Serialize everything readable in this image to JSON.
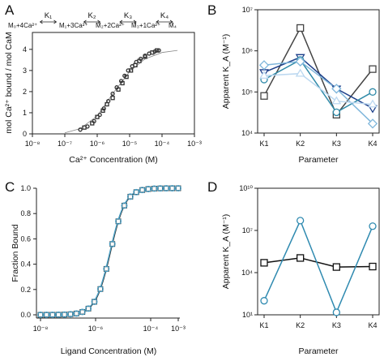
{
  "chart_data": [
    {
      "panel": "A",
      "type": "scatter",
      "xlabel": "Ca²⁺ Concentration (M)",
      "ylabel": "mol Ca²⁺ bound / mol CaM",
      "xscale": "log",
      "xlim": [
        1e-08,
        0.001
      ],
      "ylim": [
        0,
        4.8
      ],
      "xticks": [
        "10⁻⁸",
        "10⁻⁷",
        "10⁻⁶",
        "10⁻⁵",
        "10⁻⁴",
        "10⁻³"
      ],
      "yticks": [
        "0",
        "1",
        "2",
        "3",
        "4"
      ],
      "scheme": {
        "states": [
          "M₀+4Ca²⁺",
          "M₁+3Ca²⁺",
          "M₂+2Ca²⁺",
          "M₃+1Ca²⁺",
          "M₄"
        ],
        "constants": [
          "K₁",
          "K₂",
          "K₃",
          "K₄"
        ]
      },
      "series": [
        {
          "marker": "circle",
          "x": [
            3e-07,
            5e-07,
            8e-07,
            1.2e-06,
            1.6e-06,
            2.2e-06,
            3e-06,
            4e-06,
            5.5e-06,
            7e-06,
            9e-06,
            1.2e-05,
            1.6e-05,
            2.2e-05,
            3e-05,
            4e-05,
            6e-05,
            8e-05
          ],
          "y": [
            0.2,
            0.35,
            0.6,
            0.9,
            1.2,
            1.55,
            1.9,
            2.2,
            2.5,
            2.75,
            3.0,
            3.2,
            3.4,
            3.55,
            3.7,
            3.8,
            3.9,
            3.95
          ]
        },
        {
          "marker": "square",
          "x": [
            4e-07,
            7e-07,
            1e-06,
            1.5e-06,
            2e-06,
            3e-06,
            4.5e-06,
            6e-06,
            8e-06,
            1.1e-05,
            1.5e-05,
            2e-05,
            3e-05,
            5e-05,
            7e-05
          ],
          "y": [
            0.3,
            0.5,
            0.8,
            1.1,
            1.4,
            1.7,
            2.1,
            2.4,
            2.7,
            3.0,
            3.25,
            3.45,
            3.65,
            3.85,
            3.95
          ]
        }
      ],
      "fit": {
        "x": [
          1e-07,
          3e-07,
          1e-06,
          3e-06,
          1e-05,
          3e-05,
          0.0001,
          0.0003
        ],
        "y": [
          0.05,
          0.25,
          0.85,
          1.9,
          2.95,
          3.55,
          3.85,
          3.95
        ]
      }
    },
    {
      "panel": "B",
      "type": "line",
      "xlabel": "Parameter",
      "ylabel": "Apparent K_A (M⁻¹)",
      "yscale": "log",
      "categories": [
        "K1",
        "K2",
        "K3",
        "K4"
      ],
      "ylim": [
        10000.0,
        10000000.0
      ],
      "yticks": [
        "10⁴",
        "10⁵",
        "10⁶",
        "10⁷"
      ],
      "series": [
        {
          "color": "#444444",
          "marker": "square",
          "values": [
            80000.0,
            3600000.0,
            28000.0,
            360000.0
          ]
        },
        {
          "color": "#1d3f8a",
          "marker": "triangle-down",
          "values": [
            300000.0,
            700000.0,
            120000.0,
            40000.0
          ]
        },
        {
          "color": "#2f8aa8",
          "marker": "circle",
          "values": [
            200000.0,
            600000.0,
            32000.0,
            100000.0
          ]
        },
        {
          "color": "#7fb6db",
          "marker": "diamond",
          "values": [
            450000.0,
            550000.0,
            120000.0,
            17000.0
          ]
        },
        {
          "color": "#bcd8f0",
          "marker": "triangle-up",
          "values": [
            250000.0,
            280000.0,
            60000.0,
            50000.0
          ]
        }
      ]
    },
    {
      "panel": "C",
      "type": "line",
      "xlabel": "Ligand Concentration (M)",
      "ylabel": "Fraction Bound",
      "xscale": "log",
      "xlim": [
        1e-08,
        0.001
      ],
      "ylim": [
        0,
        1
      ],
      "xticks": [
        "10⁻⁸",
        "10⁻⁶",
        "10⁻⁴",
        "10⁻³"
      ],
      "yticks": [
        "0.0",
        "0.2",
        "0.4",
        "0.6",
        "0.8",
        "1.0"
      ],
      "kd": 3.5e-06,
      "hill": 1.6,
      "series": [
        {
          "color": "#333333",
          "marker": "square"
        },
        {
          "color": "#4a9fc4",
          "marker": "circle"
        }
      ]
    },
    {
      "panel": "D",
      "type": "line",
      "xlabel": "Parameter",
      "ylabel": "Apparent K_A (M⁻¹)",
      "yscale": "log",
      "categories": [
        "K1",
        "K2",
        "K3",
        "K4"
      ],
      "ylim": [
        10.0,
        10000000000.0
      ],
      "yticks": [
        "10¹",
        "10⁴",
        "10⁷",
        "10¹⁰"
      ],
      "series": [
        {
          "color": "#111111",
          "marker": "square",
          "values": [
            50000.0,
            110000.0,
            25000.0,
            27000.0
          ]
        },
        {
          "color": "#2f8ab0",
          "marker": "circle",
          "values": [
            100.0,
            50000000.0,
            15.0,
            20000000.0
          ]
        }
      ]
    }
  ]
}
